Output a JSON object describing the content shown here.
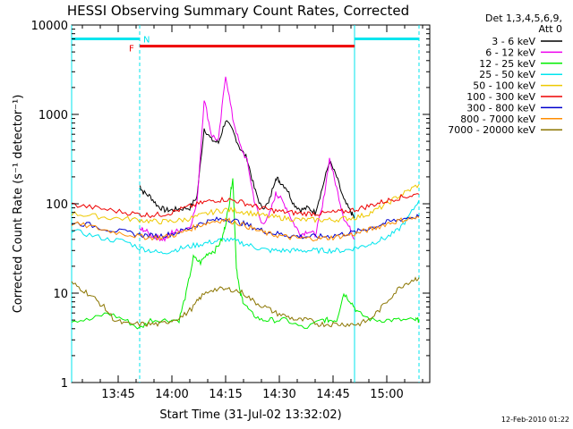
{
  "chart_data": {
    "type": "line",
    "title": "HESSI Observing Summary Count Rates, Corrected",
    "xlabel": "Start Time (31-Jul-02 13:32:02)",
    "ylabel": "Corrected Count Rate (s⁻¹ detector⁻¹)",
    "y_scale": "log",
    "ylim": [
      1,
      10000
    ],
    "xlim_minutes_since_1332": [
      0,
      100
    ],
    "x_ticks": [
      {
        "label": "13:45",
        "t": 13
      },
      {
        "label": "14:00",
        "t": 28
      },
      {
        "label": "14:15",
        "t": 43
      },
      {
        "label": "14:30",
        "t": 58
      },
      {
        "label": "14:45",
        "t": 73
      },
      {
        "label": "15:00",
        "t": 88
      }
    ],
    "y_ticks": [
      {
        "label": "1",
        "v": 1
      },
      {
        "label": "10",
        "v": 10
      },
      {
        "label": "100",
        "v": 100
      },
      {
        "label": "1000",
        "v": 1000
      },
      {
        "label": "10000",
        "v": 10000
      }
    ],
    "legend_header": [
      "Det 1,3,4,5,6,9,",
      "Att 0"
    ],
    "legend_placement": "right",
    "markers": [
      {
        "label": "N",
        "t": 19,
        "color": "#00e5ee"
      },
      {
        "label": "F",
        "t": 19,
        "color": "#ee0000"
      }
    ],
    "flare_interval": {
      "start": 19,
      "end": 79,
      "level": 5800,
      "color": "#ee0000"
    },
    "night_bars": [
      {
        "start": 0,
        "end": 19,
        "level": 7000,
        "color": "#00e5ee"
      },
      {
        "start": 79,
        "end": 97,
        "level": 7000,
        "color": "#00e5ee"
      }
    ],
    "night_lines": [
      0,
      19,
      79,
      97
    ],
    "series": [
      {
        "name": "3 - 6 keV",
        "color": "#000000",
        "x": [
          19,
          20,
          22,
          24,
          26,
          28,
          30,
          33,
          35,
          37,
          39,
          41,
          43,
          45,
          47,
          49,
          51,
          53,
          55,
          57,
          58,
          60,
          62,
          64,
          66,
          68,
          70,
          72,
          74,
          76,
          78,
          79
        ],
        "y": [
          160,
          135,
          120,
          95,
          85,
          85,
          88,
          90,
          120,
          700,
          520,
          480,
          860,
          650,
          420,
          320,
          150,
          90,
          100,
          200,
          180,
          150,
          100,
          85,
          90,
          80,
          150,
          300,
          200,
          110,
          80,
          70
        ]
      },
      {
        "name": "6 - 12 keV",
        "color": "#ee00ee",
        "x": [
          19,
          20,
          22,
          24,
          26,
          28,
          30,
          33,
          35,
          37,
          39,
          41,
          43,
          45,
          47,
          49,
          51,
          53,
          55,
          57,
          58,
          60,
          62,
          64,
          66,
          68,
          70,
          72,
          74,
          76,
          78,
          79
        ],
        "y": [
          50,
          52,
          45,
          42,
          40,
          48,
          50,
          55,
          100,
          1500,
          600,
          500,
          2800,
          900,
          450,
          300,
          110,
          60,
          70,
          130,
          120,
          90,
          60,
          45,
          50,
          45,
          90,
          320,
          150,
          70,
          50,
          40
        ]
      },
      {
        "name": "12 - 25 keV",
        "color": "#00ee00",
        "x": [
          0,
          5,
          10,
          15,
          19,
          22,
          26,
          30,
          32,
          34,
          36,
          38,
          40,
          42,
          43,
          44,
          45,
          46,
          47,
          48,
          50,
          53,
          56,
          60,
          65,
          70,
          72,
          74,
          76,
          78,
          80,
          84,
          88,
          92,
          96,
          97
        ],
        "y": [
          5,
          5,
          6,
          5,
          4,
          5,
          5,
          5,
          10,
          25,
          22,
          28,
          30,
          40,
          60,
          100,
          200,
          20,
          10,
          8,
          6,
          5,
          5,
          5,
          4,
          5,
          5,
          5,
          10,
          8,
          6,
          5,
          5,
          5,
          5,
          5
        ]
      },
      {
        "name": "25 - 50 keV",
        "color": "#00e5ee",
        "x": [
          0,
          5,
          10,
          15,
          19,
          22,
          25,
          28,
          31,
          34,
          37,
          40,
          43,
          46,
          49,
          52,
          55,
          58,
          61,
          64,
          67,
          70,
          73,
          76,
          79,
          82,
          85,
          88,
          91,
          94,
          97
        ],
        "y": [
          50,
          45,
          40,
          38,
          32,
          30,
          28,
          30,
          32,
          34,
          36,
          38,
          40,
          38,
          35,
          32,
          30,
          30,
          30,
          30,
          30,
          30,
          30,
          30,
          32,
          34,
          38,
          42,
          50,
          70,
          110
        ]
      },
      {
        "name": "50 - 100 keV",
        "color": "#eec900",
        "x": [
          0,
          5,
          10,
          15,
          19,
          22,
          25,
          28,
          31,
          34,
          37,
          40,
          43,
          46,
          49,
          52,
          55,
          58,
          61,
          64,
          67,
          70,
          73,
          76,
          79,
          82,
          85,
          88,
          91,
          94,
          97
        ],
        "y": [
          78,
          74,
          70,
          68,
          66,
          64,
          63,
          64,
          66,
          70,
          76,
          82,
          86,
          84,
          80,
          76,
          72,
          70,
          68,
          66,
          66,
          66,
          66,
          68,
          70,
          75,
          85,
          100,
          120,
          140,
          165
        ]
      },
      {
        "name": "100 - 300 keV",
        "color": "#ee0000",
        "x": [
          0,
          5,
          10,
          15,
          19,
          22,
          25,
          28,
          31,
          34,
          37,
          40,
          43,
          46,
          49,
          52,
          55,
          58,
          61,
          64,
          67,
          70,
          73,
          76,
          79,
          82,
          85,
          88,
          91,
          94,
          97
        ],
        "y": [
          98,
          92,
          86,
          80,
          76,
          75,
          76,
          80,
          88,
          96,
          104,
          110,
          112,
          108,
          100,
          92,
          86,
          82,
          80,
          78,
          78,
          78,
          80,
          82,
          86,
          92,
          100,
          108,
          116,
          122,
          128
        ]
      },
      {
        "name": "300 - 800 keV",
        "color": "#0000cd",
        "x": [
          0,
          5,
          10,
          15,
          19,
          22,
          25,
          28,
          31,
          34,
          37,
          40,
          43,
          46,
          49,
          52,
          55,
          58,
          61,
          64,
          67,
          70,
          73,
          76,
          79,
          82,
          85,
          88,
          91,
          94,
          97
        ],
        "y": [
          62,
          58,
          52,
          48,
          45,
          44,
          44,
          46,
          50,
          56,
          62,
          66,
          68,
          64,
          58,
          52,
          48,
          46,
          44,
          43,
          43,
          43,
          44,
          46,
          48,
          52,
          56,
          62,
          66,
          70,
          72
        ]
      },
      {
        "name": "800 - 7000 keV",
        "color": "#ff8c00",
        "x": [
          0,
          5,
          10,
          15,
          19,
          22,
          25,
          28,
          31,
          34,
          37,
          40,
          43,
          46,
          49,
          52,
          55,
          58,
          61,
          64,
          67,
          70,
          73,
          76,
          79,
          82,
          85,
          88,
          91,
          94,
          97
        ],
        "y": [
          60,
          56,
          50,
          46,
          43,
          42,
          42,
          44,
          48,
          54,
          60,
          64,
          66,
          62,
          56,
          50,
          46,
          44,
          42,
          41,
          41,
          41,
          42,
          44,
          46,
          50,
          54,
          60,
          64,
          68,
          70
        ]
      },
      {
        "name": "7000 - 20000 keV",
        "color": "#8b7500",
        "x": [
          0,
          3,
          6,
          9,
          12,
          15,
          19,
          22,
          25,
          28,
          31,
          34,
          36,
          39,
          42,
          45,
          48,
          51,
          54,
          57,
          60,
          63,
          66,
          69,
          72,
          75,
          78,
          80,
          83,
          86,
          89,
          92,
          95,
          97
        ],
        "y": [
          13,
          11,
          9,
          7,
          5,
          4.5,
          4.5,
          4.5,
          4.5,
          5,
          5.5,
          7,
          9,
          11,
          11,
          11,
          10,
          8,
          7,
          6,
          5.5,
          5,
          5,
          4.5,
          4.5,
          4.5,
          4.5,
          4.5,
          5,
          6.5,
          9,
          12,
          14,
          15
        ]
      }
    ]
  },
  "footer": {
    "date_stamp": "12-Feb-2010 01:22"
  }
}
